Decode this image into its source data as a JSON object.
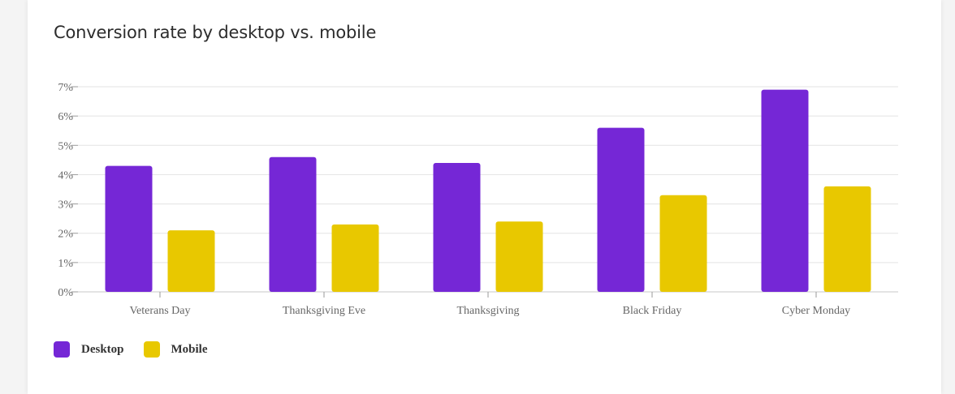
{
  "chart_data": {
    "type": "bar",
    "title": "Conversion rate by desktop vs. mobile",
    "categories": [
      "Veterans Day",
      "Thanksgiving Eve",
      "Thanksgiving",
      "Black Friday",
      "Cyber Monday"
    ],
    "series": [
      {
        "name": "Desktop",
        "color": "#7527d6",
        "values": [
          4.3,
          4.6,
          4.4,
          5.6,
          6.9
        ]
      },
      {
        "name": "Mobile",
        "color": "#e8c800",
        "values": [
          2.1,
          2.3,
          2.4,
          3.3,
          3.6
        ]
      }
    ],
    "yticks": [
      "0%",
      "1%",
      "2%",
      "3%",
      "4%",
      "5%",
      "6%",
      "7%"
    ],
    "ylim": [
      0,
      7
    ],
    "grid": true,
    "legend_position": "bottom-left"
  }
}
